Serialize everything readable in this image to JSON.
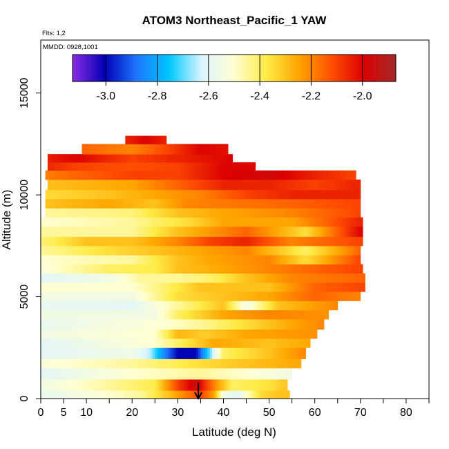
{
  "chart_data": {
    "type": "heatmap",
    "title": "ATOM3 Northeast_Pacific_1 YAW",
    "flights_label": "Flts: 1,2",
    "dates_label": "MMDD: 0928,1001",
    "xlabel": "Latitude (deg N)",
    "ylabel": "Altitude (m)",
    "xlim": [
      0,
      85
    ],
    "ylim": [
      0,
      17600
    ],
    "x_ticks": [
      0,
      5,
      10,
      20,
      30,
      40,
      50,
      60,
      70,
      80
    ],
    "x_minor_ticks": [
      15,
      25,
      35,
      45,
      55,
      65,
      75,
      85
    ],
    "y_ticks": [
      0,
      5000,
      10000,
      15000
    ],
    "marker_latitude": 34.5,
    "colorbar": {
      "range": [
        -3.13,
        -1.87
      ],
      "ticks": [
        -3.0,
        -2.8,
        -2.6,
        -2.4,
        -2.2,
        -2.0
      ],
      "tick_labels": [
        "-3.0",
        "-2.8",
        "-2.6",
        "-2.4",
        "-2.2",
        "-2.0"
      ],
      "colors": [
        "#8a2be2",
        "#0000b4",
        "#1e78ff",
        "#00c8ff",
        "#dcf5ff",
        "#ffffd2",
        "#ffeb46",
        "#ffa500",
        "#ff5000",
        "#dc0000",
        "#a52a2a"
      ]
    },
    "bands": [
      {
        "alt": [
          0,
          400
        ],
        "lat": [
          0,
          54.5
        ],
        "stops": [
          [
            0,
            -2.58
          ],
          [
            12,
            -2.52
          ],
          [
            22,
            -2.45
          ],
          [
            28,
            -2.3
          ],
          [
            35,
            -2.1
          ],
          [
            38,
            -2.25
          ],
          [
            40,
            -2.55
          ],
          [
            43,
            -2.6
          ],
          [
            48,
            -2.35
          ],
          [
            52,
            -2.3
          ]
        ]
      },
      {
        "alt": [
          400,
          950
        ],
        "lat": [
          0,
          54
        ],
        "stops": [
          [
            0,
            -2.55
          ],
          [
            15,
            -2.45
          ],
          [
            25,
            -2.38
          ],
          [
            30,
            -2.1
          ],
          [
            34,
            -1.95
          ],
          [
            38,
            -2.2
          ],
          [
            42,
            -2.4
          ],
          [
            50,
            -2.36
          ],
          [
            54,
            -2.3
          ]
        ]
      },
      {
        "alt": [
          950,
          1500
        ],
        "lat": [
          0,
          55
        ],
        "stops": [
          [
            0,
            -2.6
          ],
          [
            20,
            -2.5
          ],
          [
            35,
            -2.45
          ],
          [
            45,
            -2.5
          ],
          [
            55,
            -2.55
          ]
        ]
      },
      {
        "alt": [
          1500,
          1950
        ],
        "lat": [
          0,
          57
        ],
        "stops": [
          [
            0,
            -2.52
          ],
          [
            20,
            -2.45
          ],
          [
            35,
            -2.35
          ],
          [
            45,
            -2.3
          ],
          [
            57,
            -2.25
          ]
        ]
      },
      {
        "alt": [
          1950,
          2500
        ],
        "lat": [
          0,
          58
        ],
        "stops": [
          [
            0,
            -2.6
          ],
          [
            20,
            -2.55
          ],
          [
            24,
            -2.65
          ],
          [
            27,
            -2.85
          ],
          [
            30,
            -3.0
          ],
          [
            34,
            -3.0
          ],
          [
            37,
            -2.7
          ],
          [
            40,
            -2.4
          ],
          [
            50,
            -2.3
          ],
          [
            58,
            -2.2
          ]
        ]
      },
      {
        "alt": [
          2500,
          2950
        ],
        "lat": [
          0,
          59
        ],
        "stops": [
          [
            0,
            -2.6
          ],
          [
            25,
            -2.5
          ],
          [
            33,
            -2.35
          ],
          [
            38,
            -2.25
          ],
          [
            50,
            -2.3
          ],
          [
            59,
            -2.25
          ]
        ]
      },
      {
        "alt": [
          2950,
          3400
        ],
        "lat": [
          0,
          60.5
        ],
        "stops": [
          [
            0,
            -2.55
          ],
          [
            25,
            -2.5
          ],
          [
            30,
            -2.28
          ],
          [
            36,
            -2.32
          ],
          [
            45,
            -2.25
          ],
          [
            60,
            -2.22
          ]
        ]
      },
      {
        "alt": [
          3400,
          3900
        ],
        "lat": [
          0,
          62
        ],
        "stops": [
          [
            0,
            -2.58
          ],
          [
            28,
            -2.5
          ],
          [
            35,
            -2.45
          ],
          [
            45,
            -2.35
          ],
          [
            55,
            -2.25
          ],
          [
            62,
            -2.2
          ]
        ]
      },
      {
        "alt": [
          3900,
          4350
        ],
        "lat": [
          0,
          63
        ],
        "stops": [
          [
            0,
            -2.55
          ],
          [
            25,
            -2.55
          ],
          [
            30,
            -2.4
          ],
          [
            40,
            -2.25
          ],
          [
            50,
            -2.2
          ],
          [
            63,
            -2.22
          ]
        ]
      },
      {
        "alt": [
          4350,
          4800
        ],
        "lat": [
          0,
          65
        ],
        "stops": [
          [
            0,
            -2.58
          ],
          [
            20,
            -2.6
          ],
          [
            30,
            -2.45
          ],
          [
            40,
            -2.3
          ],
          [
            45,
            -2.55
          ],
          [
            52,
            -2.3
          ],
          [
            65,
            -2.2
          ]
        ]
      },
      {
        "alt": [
          4800,
          5250
        ],
        "lat": [
          0,
          70
        ],
        "stops": [
          [
            0,
            -2.55
          ],
          [
            20,
            -2.55
          ],
          [
            30,
            -2.35
          ],
          [
            40,
            -2.3
          ],
          [
            50,
            -2.25
          ],
          [
            60,
            -2.15
          ],
          [
            70,
            -2.2
          ]
        ]
      },
      {
        "alt": [
          5250,
          5700
        ],
        "lat": [
          0,
          71
        ],
        "stops": [
          [
            0,
            -2.5
          ],
          [
            20,
            -2.5
          ],
          [
            28,
            -2.4
          ],
          [
            35,
            -2.3
          ],
          [
            50,
            -2.3
          ],
          [
            60,
            -2.15
          ],
          [
            71,
            -2.1
          ]
        ]
      },
      {
        "alt": [
          5700,
          6150
        ],
        "lat": [
          0,
          71
        ],
        "stops": [
          [
            0,
            -2.6
          ],
          [
            15,
            -2.55
          ],
          [
            22,
            -2.45
          ],
          [
            30,
            -2.45
          ],
          [
            38,
            -2.4
          ],
          [
            45,
            -2.3
          ],
          [
            55,
            -2.2
          ],
          [
            71,
            -2.15
          ]
        ]
      },
      {
        "alt": [
          6150,
          6600
        ],
        "lat": [
          0,
          70.5
        ],
        "stops": [
          [
            0,
            -2.52
          ],
          [
            15,
            -2.4
          ],
          [
            25,
            -2.38
          ],
          [
            30,
            -2.3
          ],
          [
            40,
            -2.25
          ],
          [
            50,
            -2.2
          ],
          [
            60,
            -2.15
          ],
          [
            70,
            -2.1
          ]
        ]
      },
      {
        "alt": [
          6600,
          7050
        ],
        "lat": [
          0,
          70
        ],
        "stops": [
          [
            0,
            -2.5
          ],
          [
            20,
            -2.45
          ],
          [
            30,
            -2.3
          ],
          [
            37,
            -2.25
          ],
          [
            50,
            -2.2
          ],
          [
            58,
            -2.35
          ],
          [
            70,
            -2.1
          ]
        ]
      },
      {
        "alt": [
          7050,
          7500
        ],
        "lat": [
          0,
          70
        ],
        "stops": [
          [
            0,
            -2.45
          ],
          [
            15,
            -2.35
          ],
          [
            25,
            -2.3
          ],
          [
            35,
            -2.25
          ],
          [
            45,
            -2.2
          ],
          [
            58,
            -2.4
          ],
          [
            70,
            -2.15
          ]
        ]
      },
      {
        "alt": [
          7500,
          7950
        ],
        "lat": [
          0,
          70.5
        ],
        "stops": [
          [
            0,
            -2.42
          ],
          [
            10,
            -2.3
          ],
          [
            20,
            -2.3
          ],
          [
            30,
            -2.2
          ],
          [
            37,
            -2.1
          ],
          [
            45,
            -2.05
          ],
          [
            55,
            -2.2
          ],
          [
            70,
            -2.1
          ]
        ]
      },
      {
        "alt": [
          7950,
          8450
        ],
        "lat": [
          0,
          70.5
        ],
        "stops": [
          [
            0,
            -2.45
          ],
          [
            20,
            -2.45
          ],
          [
            30,
            -2.3
          ],
          [
            35,
            -2.25
          ],
          [
            45,
            -2.15
          ],
          [
            58,
            -2.35
          ],
          [
            70,
            -2.0
          ]
        ]
      },
      {
        "alt": [
          8450,
          8900
        ],
        "lat": [
          0,
          70.5
        ],
        "stops": [
          [
            0,
            -2.5
          ],
          [
            20,
            -2.45
          ],
          [
            32,
            -2.35
          ],
          [
            40,
            -2.25
          ],
          [
            55,
            -2.25
          ],
          [
            70,
            -2.05
          ]
        ]
      },
      {
        "alt": [
          8900,
          9350
        ],
        "lat": [
          1,
          70
        ],
        "stops": [
          [
            0,
            -2.45
          ],
          [
            20,
            -2.42
          ],
          [
            30,
            -2.3
          ],
          [
            40,
            -2.25
          ],
          [
            55,
            -2.2
          ],
          [
            70,
            -2.1
          ]
        ]
      },
      {
        "alt": [
          9350,
          9800
        ],
        "lat": [
          1,
          70
        ],
        "stops": [
          [
            0,
            -2.3
          ],
          [
            15,
            -2.25
          ],
          [
            25,
            -2.3
          ],
          [
            32,
            -2.2
          ],
          [
            42,
            -2.18
          ],
          [
            55,
            -2.15
          ],
          [
            70,
            -2.1
          ]
        ]
      },
      {
        "alt": [
          9800,
          10250
        ],
        "lat": [
          1,
          70
        ],
        "stops": [
          [
            0,
            -2.35
          ],
          [
            15,
            -2.3
          ],
          [
            25,
            -2.25
          ],
          [
            35,
            -2.2
          ],
          [
            45,
            -2.1
          ],
          [
            55,
            -2.05
          ],
          [
            70,
            -2.05
          ]
        ]
      },
      {
        "alt": [
          10250,
          10750
        ],
        "lat": [
          1.5,
          70
        ],
        "stops": [
          [
            0,
            -2.3
          ],
          [
            20,
            -2.25
          ],
          [
            30,
            -2.15
          ],
          [
            40,
            -2.05
          ],
          [
            50,
            -2.05
          ],
          [
            60,
            -2.1
          ],
          [
            70,
            -2.05
          ]
        ]
      },
      {
        "alt": [
          10750,
          11200
        ],
        "lat": [
          1,
          69
        ],
        "stops": [
          [
            0,
            -2.2
          ],
          [
            8,
            -2.15
          ],
          [
            20,
            -2.1
          ],
          [
            30,
            -2.1
          ],
          [
            40,
            -2.0
          ],
          [
            50,
            -1.97
          ],
          [
            60,
            -2.05
          ],
          [
            69,
            -2.1
          ]
        ]
      },
      {
        "alt": [
          11200,
          11600
        ],
        "lat": [
          1.5,
          47
        ],
        "stops": [
          [
            0,
            -2.05
          ],
          [
            8,
            -2.1
          ],
          [
            20,
            -2.12
          ],
          [
            30,
            -2.1
          ],
          [
            40,
            -2.0
          ],
          [
            47,
            -2.0
          ]
        ]
      },
      {
        "alt": [
          11600,
          12000
        ],
        "lat": [
          1.5,
          42
        ],
        "stops": [
          [
            0,
            -2.05
          ],
          [
            8,
            -2.0
          ],
          [
            20,
            -2.1
          ],
          [
            30,
            -2.05
          ],
          [
            42,
            -2.0
          ]
        ]
      },
      {
        "alt": [
          12000,
          12500
        ],
        "lat": [
          9,
          41
        ],
        "stops": [
          [
            9,
            -2.15
          ],
          [
            20,
            -2.2
          ],
          [
            28,
            -2.1
          ],
          [
            35,
            -2.0
          ],
          [
            41,
            -2.02
          ]
        ]
      },
      {
        "alt": [
          12500,
          12900
        ],
        "lat": [
          18.5,
          27.5
        ],
        "stops": [
          [
            18.5,
            -2.05
          ],
          [
            23,
            -2.0
          ],
          [
            27.5,
            -2.05
          ]
        ]
      }
    ]
  }
}
